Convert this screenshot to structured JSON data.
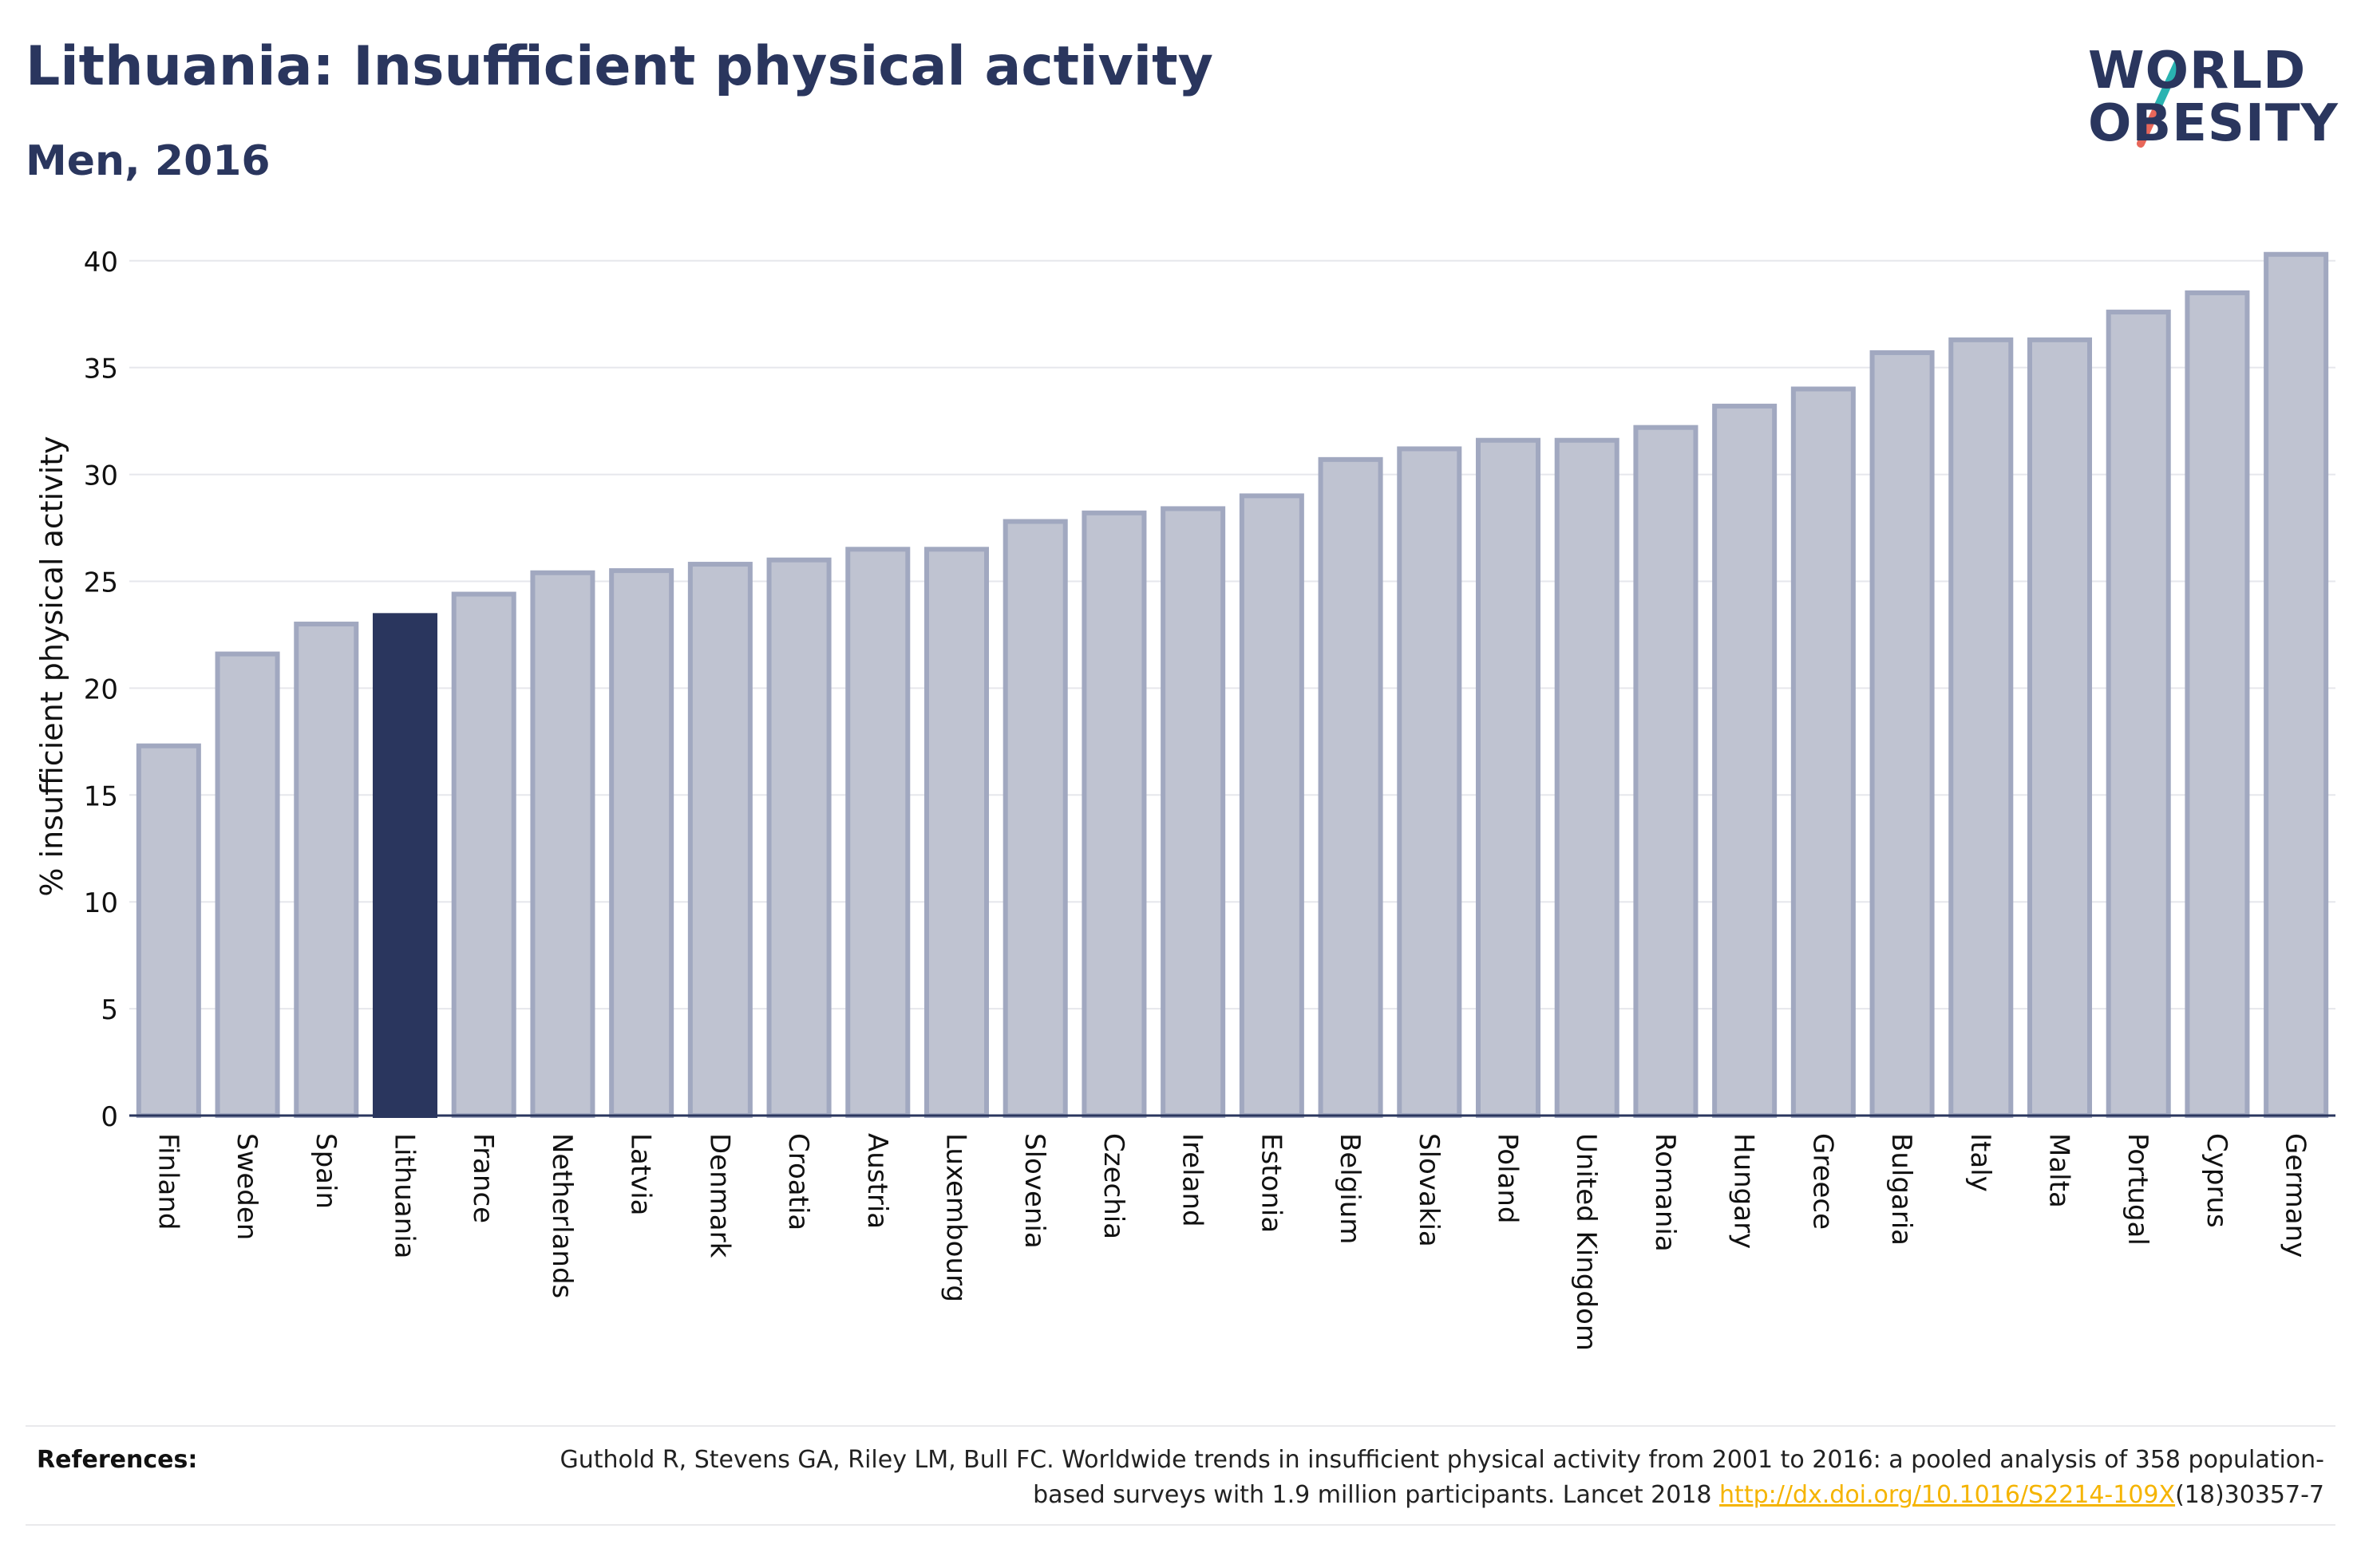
{
  "header": {
    "title": "Lithuania: Insufficient physical activity",
    "subtitle": "Men, 2016"
  },
  "logo": {
    "line1": "WORLD",
    "line2": "OBESITY",
    "accent_colors": [
      "#2ab3b1",
      "#e8675a"
    ]
  },
  "colors": {
    "highlight": "#2a365e",
    "bar_fill": "#bfc3d1",
    "bar_stroke": "#a1a8c0",
    "text": "#2a365e",
    "link": "#f5b400"
  },
  "chart_data": {
    "type": "bar",
    "title": "Lithuania: Insufficient physical activity",
    "subtitle": "Men, 2016",
    "xlabel": "",
    "ylabel": "% insufficient physical activity",
    "ylim": [
      0,
      41
    ],
    "yticks": [
      0,
      5,
      10,
      15,
      20,
      25,
      30,
      35,
      40
    ],
    "grid": true,
    "highlight_category": "Lithuania",
    "categories": [
      "Finland",
      "Sweden",
      "Spain",
      "Lithuania",
      "France",
      "Netherlands",
      "Latvia",
      "Denmark",
      "Croatia",
      "Austria",
      "Luxembourg",
      "Slovenia",
      "Czechia",
      "Ireland",
      "Estonia",
      "Belgium",
      "Slovakia",
      "Poland",
      "United Kingdom",
      "Romania",
      "Hungary",
      "Greece",
      "Bulgaria",
      "Italy",
      "Malta",
      "Portugal",
      "Cyprus",
      "Germany"
    ],
    "values": [
      17.3,
      21.6,
      23.0,
      23.4,
      24.4,
      25.4,
      25.5,
      25.8,
      26.0,
      26.5,
      26.5,
      27.8,
      28.2,
      28.4,
      29.0,
      30.7,
      31.2,
      31.6,
      31.6,
      32.2,
      33.2,
      34.0,
      35.7,
      36.3,
      36.3,
      37.6,
      38.5,
      40.3
    ]
  },
  "references": {
    "label": "References:",
    "text": "Guthold R, Stevens GA, Riley LM, Bull FC. Worldwide trends in insufficient physical activity from 2001 to 2016: a pooled analysis of 358 population-based surveys with 1.9 million participants. Lancet 2018 ",
    "link_text": "http://dx.doi.org/10.1016/S2214-109X",
    "suffix": "(18)30357-7"
  }
}
